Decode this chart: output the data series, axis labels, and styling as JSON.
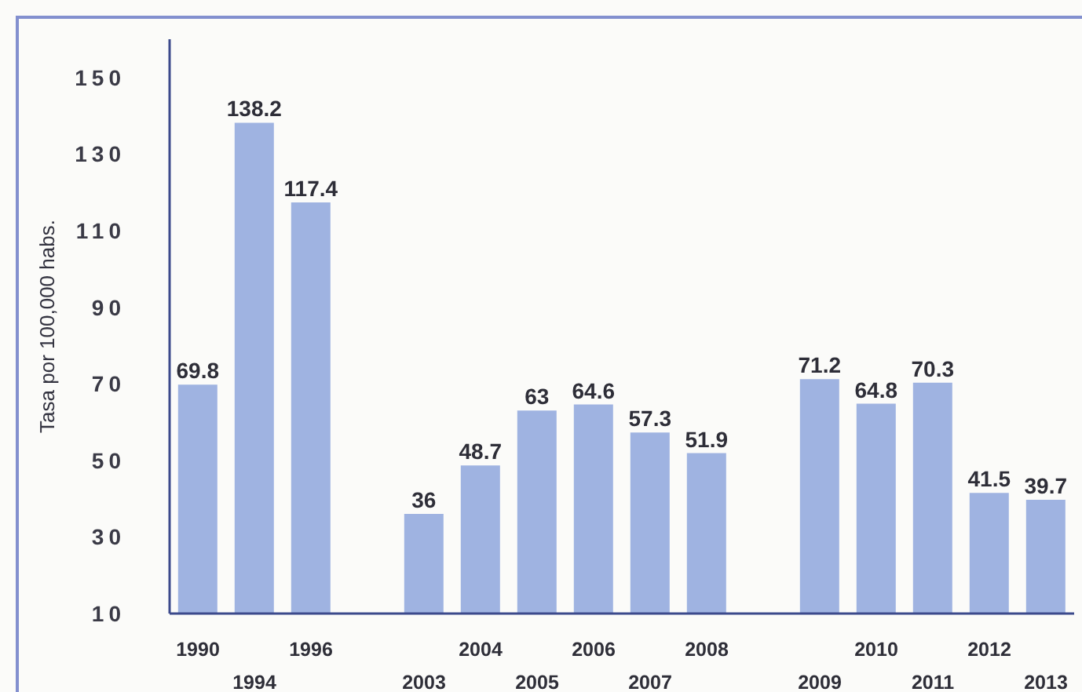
{
  "chart_data": {
    "type": "bar",
    "ylabel": "Tasa por 100,000 habs.",
    "categories": [
      "1990",
      "1994",
      "1996",
      null,
      "2003",
      "2004",
      "2005",
      "2006",
      "2007",
      "2008",
      null,
      "2009",
      "2010",
      "2011",
      "2012",
      "2013"
    ],
    "values": [
      69.8,
      138.2,
      117.4,
      null,
      36,
      48.7,
      63,
      64.6,
      57.3,
      51.9,
      null,
      71.2,
      64.8,
      70.3,
      41.5,
      39.7
    ],
    "color": "#9fb3e1",
    "ylim": [
      10,
      160
    ],
    "yticks": [
      10,
      30,
      50,
      70,
      90,
      110,
      130,
      150
    ],
    "data_labels": true
  }
}
